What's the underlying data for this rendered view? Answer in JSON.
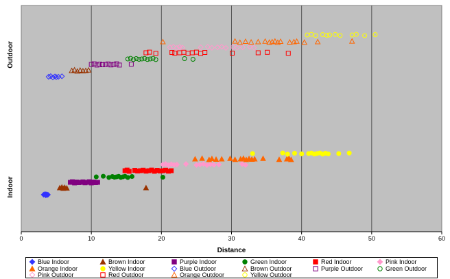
{
  "chart_data": {
    "type": "scatter",
    "xlabel": "Distance",
    "ylabel": "",
    "xlim": [
      0,
      60
    ],
    "x_ticks": [
      0,
      10,
      20,
      30,
      40,
      50,
      60
    ],
    "categories": [
      "Indoor",
      "Outdoor"
    ],
    "grid": "vertical",
    "legend_placement": "bottom",
    "series": [
      {
        "name": "Blue Indoor",
        "color": "#3333ff",
        "marker": "diamond",
        "filled": true,
        "category": "Indoor",
        "level": 1,
        "x": [
          3.2,
          3.4,
          3.5,
          3.6,
          3.7,
          3.8
        ]
      },
      {
        "name": "Brown Indoor",
        "color": "#993300",
        "marker": "triangle",
        "filled": true,
        "category": "Indoor",
        "level": 2,
        "x": [
          5.5,
          5.8,
          6.0,
          6.2,
          6.5,
          17.8
        ]
      },
      {
        "name": "Purple Indoor",
        "color": "#800080",
        "marker": "square",
        "filled": true,
        "category": "Indoor",
        "level": 3,
        "x": [
          7.0,
          7.3,
          7.6,
          7.9,
          8.2,
          8.5,
          8.8,
          9.1,
          9.4,
          9.7,
          10.0,
          10.3,
          10.6,
          10.9
        ]
      },
      {
        "name": "Green Indoor",
        "color": "#008000",
        "marker": "circle",
        "filled": true,
        "category": "Indoor",
        "level": 4,
        "x": [
          10.7,
          11.7,
          12.5,
          13.0,
          13.3,
          13.6,
          13.9,
          14.2,
          14.5,
          14.8,
          15.2,
          15.8,
          20.2
        ]
      },
      {
        "name": "Red Indoor",
        "color": "#ff0000",
        "marker": "square",
        "filled": true,
        "category": "Indoor",
        "level": 5,
        "x": [
          14.8,
          15.1,
          15.4,
          16.2,
          16.6,
          17.0,
          17.4,
          17.8,
          18.2,
          18.6,
          19.0,
          19.4,
          19.8,
          20.2,
          20.6,
          21.0,
          21.4
        ]
      },
      {
        "name": "Pink Indoor",
        "color": "#ff99cc",
        "marker": "diamond",
        "filled": true,
        "category": "Indoor",
        "level": 6,
        "x": [
          20.2,
          20.6,
          21.0,
          21.4,
          21.8,
          22.2,
          23.5,
          25.0,
          25.5,
          26.0,
          26.5,
          27.0,
          27.5,
          28.2,
          31.5,
          32.0
        ]
      },
      {
        "name": "Orange Indoor",
        "color": "#ff6600",
        "marker": "triangle",
        "filled": true,
        "category": "Indoor",
        "level": 7,
        "x": [
          24.8,
          25.8,
          26.8,
          27.2,
          27.8,
          28.6,
          29.8,
          30.5,
          31.3,
          31.7,
          32.1,
          32.5,
          32.9,
          33.3,
          34.5,
          36.8,
          37.9,
          38.2,
          38.5
        ]
      },
      {
        "name": "Yellow Indoor",
        "color": "#ffff00",
        "marker": "circle",
        "filled": true,
        "category": "Indoor",
        "level": 8,
        "x": [
          33.0,
          37.3,
          38.0,
          39.0,
          40.0,
          41.0,
          41.4,
          41.8,
          42.2,
          42.6,
          43.0,
          43.4,
          43.8,
          45.3,
          46.8
        ]
      },
      {
        "name": "Blue Outdoor",
        "color": "#3333ff",
        "marker": "diamond",
        "filled": false,
        "category": "Outdoor",
        "level": 1,
        "x": [
          3.9,
          4.2,
          4.5,
          4.8,
          5.0,
          5.3,
          5.8
        ]
      },
      {
        "name": "Brown Outdoor",
        "color": "#993300",
        "marker": "triangle",
        "filled": false,
        "category": "Outdoor",
        "level": 2,
        "x": [
          7.2,
          7.6,
          8.0,
          8.4,
          8.8,
          9.2,
          9.6
        ]
      },
      {
        "name": "Purple Outdoor",
        "color": "#800080",
        "marker": "square",
        "filled": false,
        "category": "Outdoor",
        "level": 3,
        "x": [
          10.0,
          10.4,
          10.8,
          11.2,
          11.6,
          12.0,
          12.4,
          12.8,
          13.2,
          13.6,
          14.0,
          15.7
        ]
      },
      {
        "name": "Green Outdoor",
        "color": "#008000",
        "marker": "circle",
        "filled": false,
        "category": "Outdoor",
        "level": 4,
        "x": [
          15.2,
          15.6,
          16.0,
          16.4,
          16.8,
          17.2,
          17.6,
          18.0,
          18.4,
          18.8,
          19.2,
          23.3,
          24.5
        ]
      },
      {
        "name": "Pink Outdoor",
        "color": "#ff99cc",
        "marker": "diamond",
        "filled": false,
        "category": "Outdoor",
        "level": 6,
        "x": [
          21.2,
          21.7,
          22.2,
          22.6,
          23.0,
          25.6,
          26.6,
          27.2,
          28.0,
          28.6,
          29.2,
          30.2,
          30.8,
          31.6,
          32.6,
          33.2
        ]
      },
      {
        "name": "Red Outdoor",
        "color": "#ff0000",
        "marker": "square",
        "filled": false,
        "category": "Outdoor",
        "level": 5,
        "x": [
          17.8,
          18.3,
          19.2,
          21.5,
          21.9,
          22.6,
          23.2,
          23.8,
          24.4,
          25.0,
          25.6,
          26.2,
          30.1,
          33.8,
          35.1,
          38.1
        ]
      },
      {
        "name": "Orange Outdoor",
        "color": "#ff6600",
        "marker": "triangle",
        "filled": false,
        "category": "Outdoor",
        "level": 7,
        "x": [
          20.2,
          30.5,
          31.2,
          32.0,
          32.8,
          33.8,
          34.8,
          35.4,
          35.8,
          36.2,
          36.6,
          37.0,
          38.3,
          38.9,
          39.3,
          40.4,
          42.3,
          47.2
        ]
      },
      {
        "name": "Yellow Outdoor",
        "color": "#ffff00",
        "marker": "circle",
        "filled": false,
        "category": "Outdoor",
        "level": 8,
        "x": [
          40.8,
          41.4,
          42.0,
          43.0,
          43.6,
          44.0,
          44.8,
          45.5,
          47.2,
          47.8,
          49.0,
          50.5
        ]
      }
    ]
  }
}
